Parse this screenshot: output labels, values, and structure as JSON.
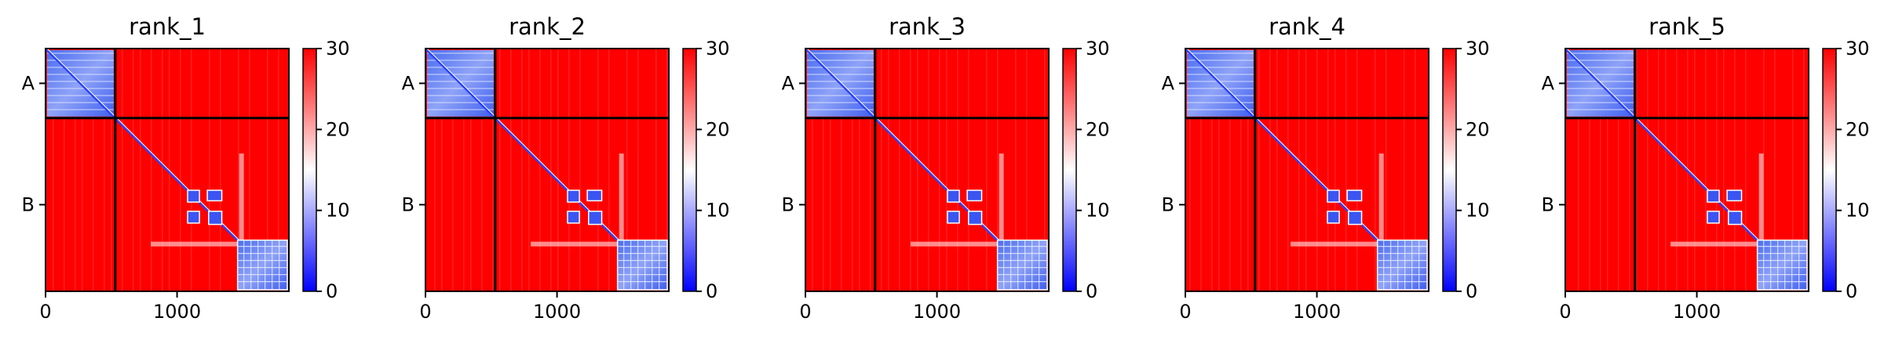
{
  "chart_data": [
    {
      "type": "heatmap",
      "title": "rank_1",
      "x_ticks": [
        {
          "value": 0,
          "label": "0"
        },
        {
          "value": 1000,
          "label": "1000"
        }
      ],
      "xlim": [
        0,
        1850
      ],
      "y_tick_labels": [
        "A",
        "B"
      ],
      "chain_boundary": 530,
      "colorbar": {
        "range": [
          0,
          30
        ],
        "ticks": [
          0,
          10,
          20,
          30
        ],
        "colors": [
          "#0000ff",
          "#ffffff",
          "#ff0000"
        ]
      }
    },
    {
      "type": "heatmap",
      "title": "rank_2",
      "x_ticks": [
        {
          "value": 0,
          "label": "0"
        },
        {
          "value": 1000,
          "label": "1000"
        }
      ],
      "xlim": [
        0,
        1850
      ],
      "y_tick_labels": [
        "A",
        "B"
      ],
      "chain_boundary": 530,
      "colorbar": {
        "range": [
          0,
          30
        ],
        "ticks": [
          0,
          10,
          20,
          30
        ],
        "colors": [
          "#0000ff",
          "#ffffff",
          "#ff0000"
        ]
      }
    },
    {
      "type": "heatmap",
      "title": "rank_3",
      "x_ticks": [
        {
          "value": 0,
          "label": "0"
        },
        {
          "value": 1000,
          "label": "1000"
        }
      ],
      "xlim": [
        0,
        1850
      ],
      "y_tick_labels": [
        "A",
        "B"
      ],
      "chain_boundary": 530,
      "colorbar": {
        "range": [
          0,
          30
        ],
        "ticks": [
          0,
          10,
          20,
          30
        ],
        "colors": [
          "#0000ff",
          "#ffffff",
          "#ff0000"
        ]
      }
    },
    {
      "type": "heatmap",
      "title": "rank_4",
      "x_ticks": [
        {
          "value": 0,
          "label": "0"
        },
        {
          "value": 1000,
          "label": "1000"
        }
      ],
      "xlim": [
        0,
        1850
      ],
      "y_tick_labels": [
        "A",
        "B"
      ],
      "chain_boundary": 530,
      "colorbar": {
        "range": [
          0,
          30
        ],
        "ticks": [
          0,
          10,
          20,
          30
        ],
        "colors": [
          "#0000ff",
          "#ffffff",
          "#ff0000"
        ]
      }
    },
    {
      "type": "heatmap",
      "title": "rank_5",
      "x_ticks": [
        {
          "value": 0,
          "label": "0"
        },
        {
          "value": 1000,
          "label": "1000"
        }
      ],
      "xlim": [
        0,
        1850
      ],
      "y_tick_labels": [
        "A",
        "B"
      ],
      "chain_boundary": 530,
      "colorbar": {
        "range": [
          0,
          30
        ],
        "ticks": [
          0,
          10,
          20,
          30
        ],
        "colors": [
          "#0000ff",
          "#ffffff",
          "#ff0000"
        ]
      }
    }
  ]
}
